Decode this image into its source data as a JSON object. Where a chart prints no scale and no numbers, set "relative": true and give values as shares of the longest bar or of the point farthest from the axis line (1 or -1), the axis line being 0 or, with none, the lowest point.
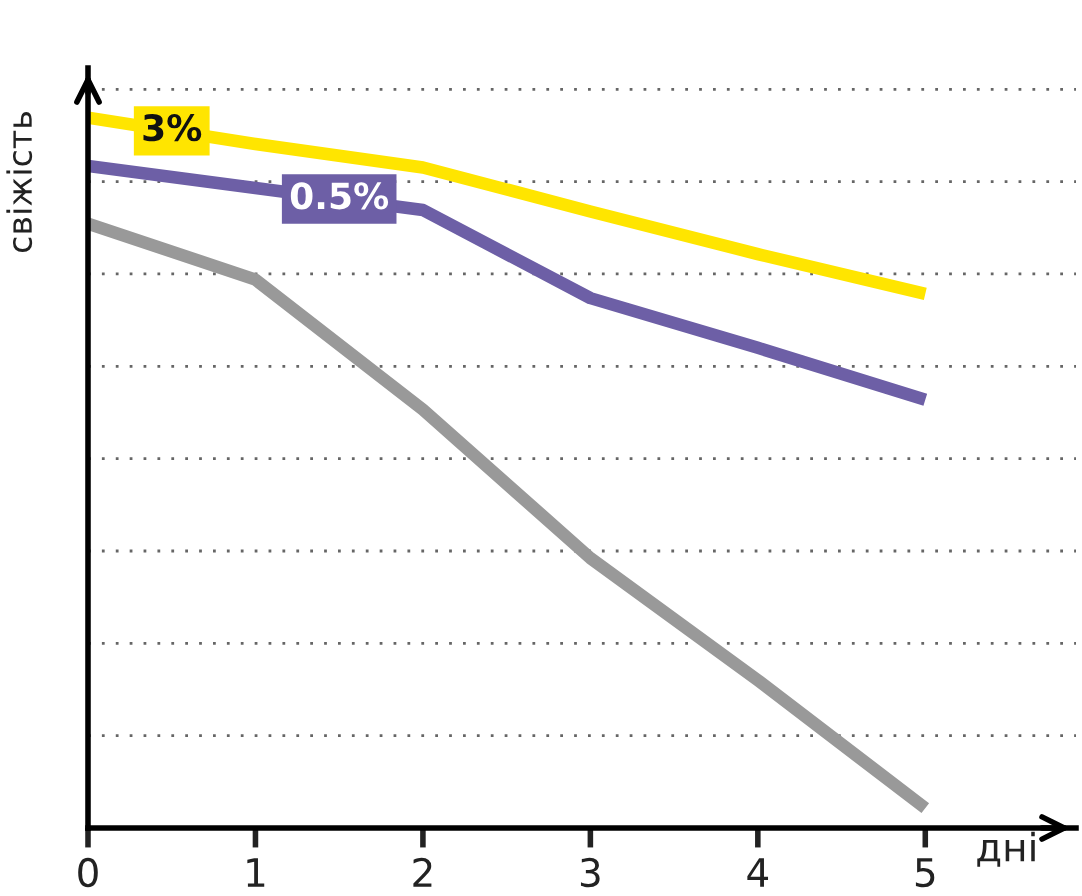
{
  "chart_data": {
    "type": "line",
    "relative": true,
    "ylabel": "свіжість",
    "xlabel": "дні",
    "x": [
      0,
      1,
      2,
      3,
      4,
      5
    ],
    "xlim": [
      0,
      5.9
    ],
    "xticks": [
      0,
      1,
      2,
      3,
      4,
      5
    ],
    "grid": "y",
    "legend": false,
    "marker": "none",
    "line_style": "solid",
    "tick_labels": "x",
    "series": [
      {
        "name": "3%",
        "color": "#ffe500",
        "values": [
          1,
          0.963,
          0.93,
          0.868,
          0.808,
          0.752
        ]
      },
      {
        "name": "0.5%",
        "color": "#6d5fa6",
        "values": [
          0.932,
          0.901,
          0.87,
          0.746,
          0.676,
          0.603
        ]
      },
      {
        "color": "#999999",
        "values": [
          0.851,
          0.772,
          0.589,
          0.38,
          0.208,
          0.028
        ]
      }
    ]
  }
}
